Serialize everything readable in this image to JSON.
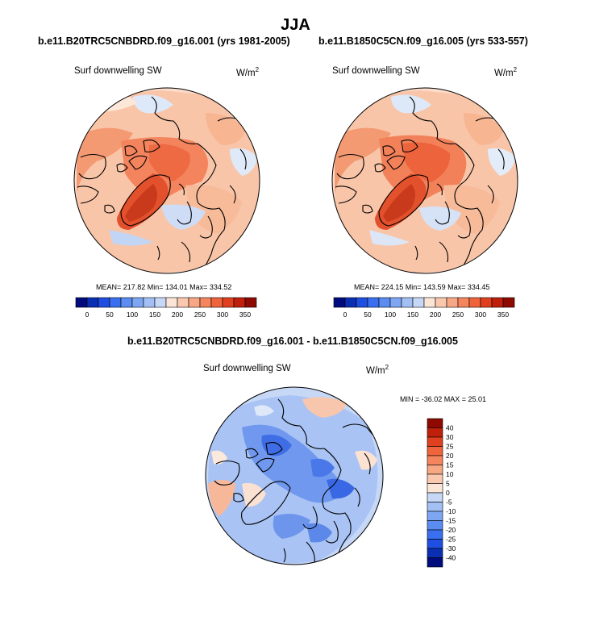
{
  "figure": {
    "season": "JJA",
    "panels": [
      {
        "id": "left",
        "title": "b.e11.B20TRC5CNBDRD.f09_g16.001 (yrs 1981-2005)",
        "variable": "Surf downwelling SW",
        "units_base": "W/m",
        "units_exp": "2",
        "stats": {
          "mean": "217.82",
          "min": "134.01",
          "max": "334.52"
        },
        "stats_text": "MEAN= 217.82  Min= 134.01  Max= 334.52"
      },
      {
        "id": "right",
        "title": "b.e11.B1850C5CN.f09_g16.005 (yrs 533-557)",
        "variable": "Surf downwelling SW",
        "units_base": "W/m",
        "units_exp": "2",
        "stats": {
          "mean": "224.15",
          "min": "143.59",
          "max": "334.45"
        },
        "stats_text": "MEAN= 224.15  Min= 143.59  Max= 334.45"
      },
      {
        "id": "diff",
        "title": "b.e11.B20TRC5CNBDRD.f09_g16.001 - b.e11.B1850C5CN.f09_g16.005",
        "variable": "Surf downwelling SW",
        "units_base": "W/m",
        "units_exp": "2",
        "stats": {
          "min": "-36.02",
          "max": "25.01"
        },
        "stats_text": "MIN = -36.02 MAX =  25.01"
      }
    ],
    "colorbar_abs": {
      "ticks": [
        "0",
        "50",
        "100",
        "150",
        "200",
        "250",
        "300",
        "350"
      ],
      "colors": [
        "#000c7d",
        "#0a2fb3",
        "#1f4fe0",
        "#3a6ff0",
        "#5a8cf2",
        "#7ea6f3",
        "#a3c0f5",
        "#c7d8f7",
        "#fbe5d6",
        "#f9c8ae",
        "#f7a784",
        "#f5855d",
        "#f0643c",
        "#e0401f",
        "#c01f0b",
        "#8e0a00"
      ]
    },
    "colorbar_diff": {
      "ticks": [
        "40",
        "30",
        "25",
        "20",
        "15",
        "10",
        "5",
        "0",
        "-5",
        "-10",
        "-15",
        "-20",
        "-25",
        "-30",
        "-40"
      ],
      "colors": [
        "#8e0a00",
        "#c01f0b",
        "#e0401f",
        "#f0643c",
        "#f5855d",
        "#f7a784",
        "#f9c8ae",
        "#fbe5d6",
        "#c7d8f7",
        "#a3c0f5",
        "#7ea6f3",
        "#5a8cf2",
        "#3a6ff0",
        "#1f4fe0",
        "#0a2fb3",
        "#000c7d"
      ]
    }
  }
}
